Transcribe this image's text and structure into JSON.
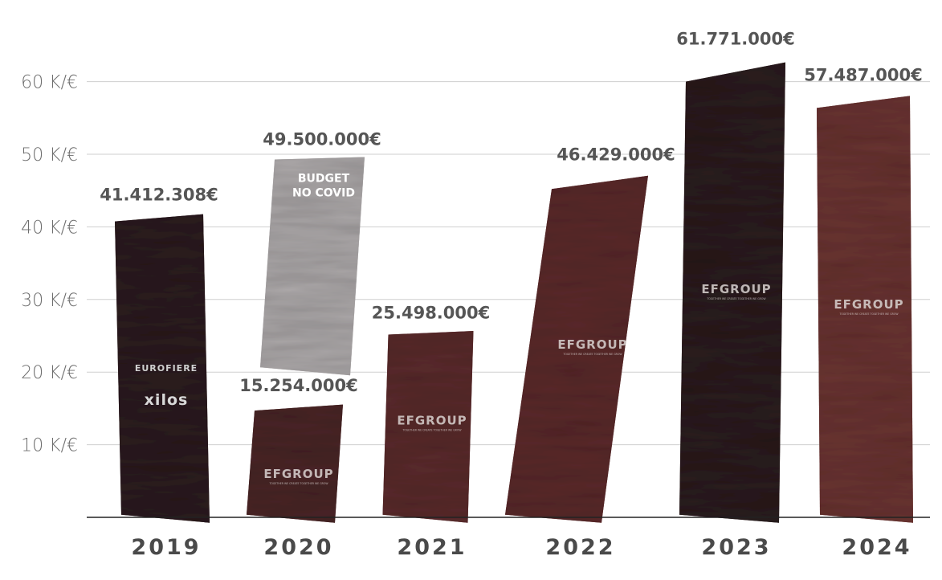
{
  "chart_data": {
    "type": "bar",
    "categories": [
      "2019",
      "2020",
      "2021",
      "2022",
      "2023",
      "2024"
    ],
    "values": [
      41412308,
      15254000,
      25498000,
      46429000,
      61771000,
      57487000
    ],
    "value_labels": [
      "41.412.308€",
      "15.254.000€",
      "25.498.000€",
      "46.429.000€",
      "61.771.000€",
      "57.487.000€"
    ],
    "budget_bar": {
      "category": "2020",
      "value": 49500000,
      "value_label": "49.500.000€",
      "text_line1": "BUDGET",
      "text_line2": "NO COVID",
      "color": "#aca8a9"
    },
    "y_ticks": [
      10,
      20,
      30,
      40,
      50,
      60
    ],
    "y_tick_labels": [
      "10 K/€",
      "20 K/€",
      "30 K/€",
      "40 K/€",
      "50 K/€",
      "60 K/€"
    ],
    "ylim": [
      0,
      62
    ],
    "grid": true,
    "bar_colors": [
      "#2c1c1e",
      "#4a2527",
      "#5a2b2c",
      "#5b2a2b",
      "#2b1c1d",
      "#6a3432"
    ],
    "bar_logos": [
      {
        "line1": "EUROFIERE",
        "line2": "xilos"
      },
      {
        "line1": "EFGROUP",
        "line2": "TOGETHER WE CREATE TOGETHER WE GROW"
      },
      {
        "line1": "EFGROUP",
        "line2": "TOGETHER WE CREATE TOGETHER WE GROW"
      },
      {
        "line1": "EFGROUP",
        "line2": "TOGETHER WE CREATE TOGETHER WE GROW"
      },
      {
        "line1": "EFGROUP",
        "line2": "TOGETHER WE CREATE TOGETHER WE GROW"
      },
      {
        "line1": "EFGROUP",
        "line2": "TOGETHER WE CREATE TOGETHER WE GROW"
      }
    ]
  }
}
